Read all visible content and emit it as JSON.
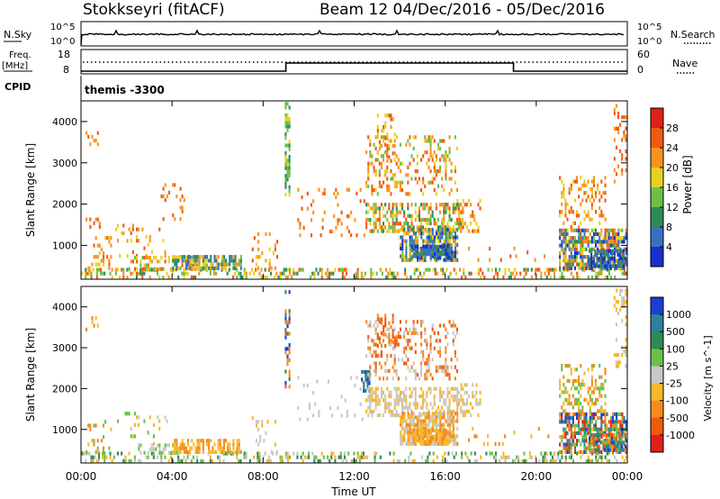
{
  "header": {
    "station": "Stokkseyri (fitACF)",
    "beam_range": "Beam 12  04/Dec/2016 - 05/Dec/2016"
  },
  "strips": {
    "nsky_label": "N.Sky",
    "nsearch_label": "N.Search",
    "noise_ticks_left": [
      "10^5",
      "10^0"
    ],
    "noise_ticks_right": [
      "10^5",
      "10^0"
    ],
    "freq_label_line1": "Freq.",
    "freq_label_line2": "[MHz]",
    "freq_ticks": [
      "18",
      "8"
    ],
    "nave_label": "Nave",
    "nave_ticks": [
      "60",
      "0"
    ],
    "cpid_label": "CPID",
    "cpid_value": "themis -3300",
    "nave_changes": [
      {
        "from_hour": 0,
        "to_hour": 9,
        "level": "low"
      },
      {
        "from_hour": 9,
        "to_hour": 19,
        "level": "high"
      },
      {
        "from_hour": 19,
        "to_hour": 24,
        "level": "low"
      }
    ]
  },
  "axes": {
    "ylabel": "Slant Range [km]",
    "xlabel": "Time UT",
    "yticks": [
      "4000",
      "3000",
      "2000",
      "1000"
    ],
    "xticks": [
      "00:00",
      "04:00",
      "08:00",
      "12:00",
      "16:00",
      "20:00",
      "00:00"
    ]
  },
  "chart_data": [
    {
      "type": "heatmap",
      "panel": "power",
      "x_range_hours": [
        0,
        24
      ],
      "y_range_km": [
        180,
        4500
      ],
      "colorbar_label": "Power [dB]",
      "colorbar_ticks": [
        "28",
        "24",
        "20",
        "16",
        "12",
        "8",
        "4"
      ],
      "colors_top_to_bottom": [
        "#e0201a",
        "#f05a10",
        "#f7941d",
        "#e8d020",
        "#6cc04a",
        "#2e8b57",
        "#3a6fc4",
        "#1a2fd0"
      ],
      "blobs": [
        {
          "t0": 0.0,
          "t1": 24.0,
          "r0": 180,
          "r1": 420,
          "density": 0.35,
          "levels": [
            1,
            2,
            3,
            4,
            5
          ]
        },
        {
          "t0": 0.2,
          "t1": 1.3,
          "r0": 400,
          "r1": 1200,
          "density": 0.25,
          "levels": [
            1,
            2,
            3
          ]
        },
        {
          "t0": 0.2,
          "t1": 1.0,
          "r0": 1400,
          "r1": 1700,
          "density": 0.2,
          "levels": [
            1,
            2
          ]
        },
        {
          "t0": 0.2,
          "t1": 0.7,
          "r0": 3400,
          "r1": 3700,
          "density": 0.3,
          "levels": [
            1,
            2
          ]
        },
        {
          "t0": 1.5,
          "t1": 3.8,
          "r0": 700,
          "r1": 1500,
          "density": 0.12,
          "levels": [
            1,
            2,
            3
          ]
        },
        {
          "t0": 2.0,
          "t1": 5.5,
          "r0": 380,
          "r1": 700,
          "density": 0.45,
          "levels": [
            1,
            2,
            3,
            4
          ]
        },
        {
          "t0": 4.0,
          "t1": 7.0,
          "r0": 400,
          "r1": 720,
          "density": 0.7,
          "levels": [
            2,
            3,
            4,
            5,
            6
          ]
        },
        {
          "t0": 3.5,
          "t1": 4.5,
          "r0": 1500,
          "r1": 2500,
          "density": 0.12,
          "levels": [
            1,
            2
          ]
        },
        {
          "t0": 7.5,
          "t1": 8.6,
          "r0": 400,
          "r1": 1300,
          "density": 0.15,
          "levels": [
            1,
            2,
            3
          ]
        },
        {
          "t0": 8.95,
          "t1": 9.15,
          "r0": 2000,
          "r1": 4400,
          "density": 0.55,
          "levels": [
            3,
            4,
            5
          ]
        },
        {
          "t0": 9.5,
          "t1": 12.5,
          "r0": 1200,
          "r1": 2300,
          "density": 0.1,
          "levels": [
            1,
            2
          ]
        },
        {
          "t0": 12.5,
          "t1": 16.8,
          "r0": 1300,
          "r1": 2000,
          "density": 0.5,
          "levels": [
            1,
            2,
            3,
            4,
            5
          ]
        },
        {
          "t0": 12.5,
          "t1": 16.5,
          "r0": 2200,
          "r1": 3600,
          "density": 0.3,
          "levels": [
            1,
            2,
            3,
            4
          ]
        },
        {
          "t0": 13.0,
          "t1": 13.8,
          "r0": 3000,
          "r1": 4100,
          "density": 0.3,
          "levels": [
            1,
            2,
            3
          ]
        },
        {
          "t0": 14.0,
          "t1": 16.5,
          "r0": 600,
          "r1": 1400,
          "density": 0.75,
          "levels": [
            2,
            3,
            4,
            5,
            6,
            7
          ]
        },
        {
          "t0": 14.5,
          "t1": 16.2,
          "r0": 650,
          "r1": 1000,
          "density": 0.8,
          "levels": [
            5,
            6,
            7
          ]
        },
        {
          "t0": 16.5,
          "t1": 17.5,
          "r0": 1300,
          "r1": 2100,
          "density": 0.3,
          "levels": [
            1,
            2,
            3
          ]
        },
        {
          "t0": 17.0,
          "t1": 20.5,
          "r0": 600,
          "r1": 1000,
          "density": 0.06,
          "levels": [
            1,
            2
          ]
        },
        {
          "t0": 21.0,
          "t1": 24.0,
          "r0": 400,
          "r1": 1400,
          "density": 0.7,
          "levels": [
            1,
            2,
            3,
            4,
            5,
            6,
            7
          ]
        },
        {
          "t0": 22.3,
          "t1": 24.0,
          "r0": 450,
          "r1": 900,
          "density": 0.8,
          "levels": [
            5,
            6,
            7
          ]
        },
        {
          "t0": 21.0,
          "t1": 23.0,
          "r0": 1400,
          "r1": 2600,
          "density": 0.3,
          "levels": [
            1,
            2,
            3
          ]
        },
        {
          "t0": 23.4,
          "t1": 24.0,
          "r0": 2500,
          "r1": 4400,
          "density": 0.2,
          "levels": [
            1,
            2
          ]
        }
      ]
    },
    {
      "type": "heatmap",
      "panel": "velocity",
      "x_range_hours": [
        0,
        24
      ],
      "y_range_km": [
        180,
        4500
      ],
      "colorbar_label": "Velocity [m s^-1]",
      "colorbar_ticks": [
        "1000",
        "500",
        "100",
        "25",
        "-25",
        "-100",
        "-500",
        "-1000"
      ],
      "colors_top_to_bottom": [
        "#1a3fd0",
        "#2e7fa0",
        "#2e8b57",
        "#6cc04a",
        "#c8c8c4",
        "#f7b82a",
        "#f58a1f",
        "#f05a10",
        "#e0201a"
      ],
      "blobs": [
        {
          "t0": 0.0,
          "t1": 24.0,
          "r0": 180,
          "r1": 420,
          "density": 0.3,
          "levels": [
            2,
            3,
            4,
            5
          ]
        },
        {
          "t0": 0.2,
          "t1": 1.3,
          "r0": 400,
          "r1": 1200,
          "density": 0.2,
          "levels": [
            3,
            5,
            6
          ]
        },
        {
          "t0": 0.2,
          "t1": 0.7,
          "r0": 3400,
          "r1": 3700,
          "density": 0.3,
          "levels": [
            5,
            6
          ]
        },
        {
          "t0": 1.5,
          "t1": 3.8,
          "r0": 600,
          "r1": 1400,
          "density": 0.1,
          "levels": [
            3,
            4,
            5
          ]
        },
        {
          "t0": 2.5,
          "t1": 4.5,
          "r0": 380,
          "r1": 650,
          "density": 0.45,
          "levels": [
            3,
            4
          ]
        },
        {
          "t0": 4.0,
          "t1": 7.0,
          "r0": 400,
          "r1": 720,
          "density": 0.7,
          "levels": [
            5,
            6
          ]
        },
        {
          "t0": 7.5,
          "t1": 8.6,
          "r0": 400,
          "r1": 1300,
          "density": 0.12,
          "levels": [
            4,
            5
          ]
        },
        {
          "t0": 8.95,
          "t1": 9.15,
          "r0": 2000,
          "r1": 4400,
          "density": 0.5,
          "levels": [
            0,
            2,
            6,
            7
          ]
        },
        {
          "t0": 9.5,
          "t1": 12.5,
          "r0": 1200,
          "r1": 2300,
          "density": 0.08,
          "levels": [
            4
          ]
        },
        {
          "t0": 12.3,
          "t1": 12.7,
          "r0": 1900,
          "r1": 2400,
          "density": 0.5,
          "levels": [
            0,
            1,
            2
          ]
        },
        {
          "t0": 12.5,
          "t1": 16.8,
          "r0": 1300,
          "r1": 2000,
          "density": 0.5,
          "levels": [
            4,
            5
          ]
        },
        {
          "t0": 12.5,
          "t1": 16.5,
          "r0": 2200,
          "r1": 3600,
          "density": 0.3,
          "levels": [
            4,
            6,
            7
          ]
        },
        {
          "t0": 13.0,
          "t1": 13.8,
          "r0": 3000,
          "r1": 3800,
          "density": 0.3,
          "levels": [
            6,
            7
          ]
        },
        {
          "t0": 14.0,
          "t1": 16.5,
          "r0": 600,
          "r1": 1400,
          "density": 0.75,
          "levels": [
            4,
            5,
            6
          ]
        },
        {
          "t0": 14.5,
          "t1": 16.2,
          "r0": 650,
          "r1": 1000,
          "density": 0.8,
          "levels": [
            5,
            6
          ]
        },
        {
          "t0": 16.5,
          "t1": 17.5,
          "r0": 1300,
          "r1": 2100,
          "density": 0.3,
          "levels": [
            4,
            5
          ]
        },
        {
          "t0": 17.0,
          "t1": 20.5,
          "r0": 600,
          "r1": 1000,
          "density": 0.06,
          "levels": [
            5,
            6
          ]
        },
        {
          "t0": 21.0,
          "t1": 24.0,
          "r0": 400,
          "r1": 1400,
          "density": 0.7,
          "levels": [
            0,
            1,
            2,
            3,
            5,
            6,
            7,
            8
          ]
        },
        {
          "t0": 22.3,
          "t1": 24.0,
          "r0": 450,
          "r1": 900,
          "density": 0.8,
          "levels": [
            0,
            1,
            2,
            3,
            6,
            7
          ]
        },
        {
          "t0": 21.0,
          "t1": 23.0,
          "r0": 1400,
          "r1": 2600,
          "density": 0.3,
          "levels": [
            3,
            5,
            6
          ]
        },
        {
          "t0": 23.4,
          "t1": 24.0,
          "r0": 2500,
          "r1": 4400,
          "density": 0.2,
          "levels": [
            4,
            5
          ]
        }
      ]
    }
  ]
}
